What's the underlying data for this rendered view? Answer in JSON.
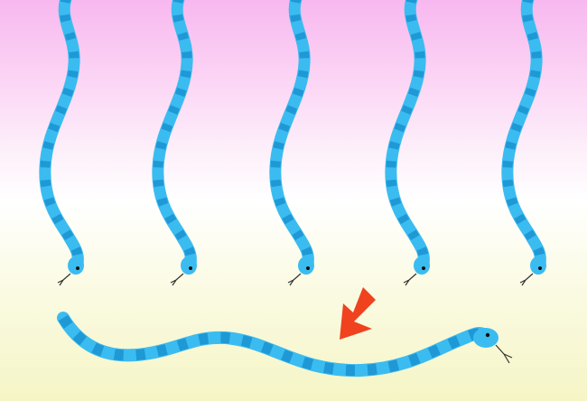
{
  "scene": {
    "background_top": "#f7b8ef",
    "background_bottom": "#f5f5c6",
    "snake_color": "#3bbcf0",
    "stripe_color": "#1f98d6",
    "arrow_color": "#f0421e",
    "hanging_snakes": 5,
    "crawling_snakes": 1,
    "arrow_icon": "arrow-down-left-icon"
  }
}
